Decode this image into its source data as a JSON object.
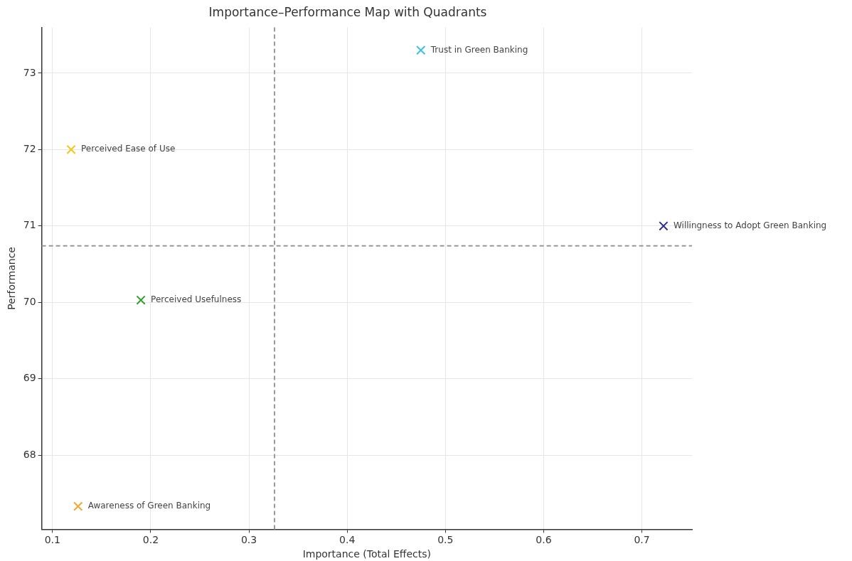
{
  "chart_data": {
    "type": "scatter",
    "title": "Importance–Performance Map with Quadrants",
    "xlabel": "Importance (Total Effects)",
    "ylabel": "Performance",
    "xlim": [
      0.089,
      0.751
    ],
    "xticks": [
      0.1,
      0.2,
      0.3,
      0.4,
      0.5,
      0.6,
      0.7
    ],
    "ylim": [
      67.03,
      73.6
    ],
    "yticks": [
      68,
      69,
      70,
      71,
      72,
      73
    ],
    "grid": true,
    "legend": false,
    "marker": "cross",
    "series": [
      {
        "name": "Trust in Green Banking",
        "color": "#3ec1e0",
        "x": [
          0.475
        ],
        "values": [
          73.3
        ]
      },
      {
        "name": "Perceived Ease of Use",
        "color": "#f5c518",
        "x": [
          0.119
        ],
        "values": [
          72.0
        ]
      },
      {
        "name": "Willingness to Adopt Green Banking",
        "color": "#2e2e8a",
        "x": [
          0.722
        ],
        "values": [
          71.0
        ]
      },
      {
        "name": "Perceived Usefulness",
        "color": "#2ca02c",
        "x": [
          0.19
        ],
        "values": [
          70.03
        ]
      },
      {
        "name": "Awareness of Green Banking",
        "color": "#f0a830",
        "x": [
          0.126
        ],
        "values": [
          67.33
        ]
      }
    ],
    "ref_lines": [
      {
        "axis": "x",
        "value": 0.326,
        "color": "#999999",
        "line_style": "dashed"
      },
      {
        "axis": "y",
        "value": 70.74,
        "color": "#999999",
        "line_style": "dashed"
      }
    ]
  }
}
